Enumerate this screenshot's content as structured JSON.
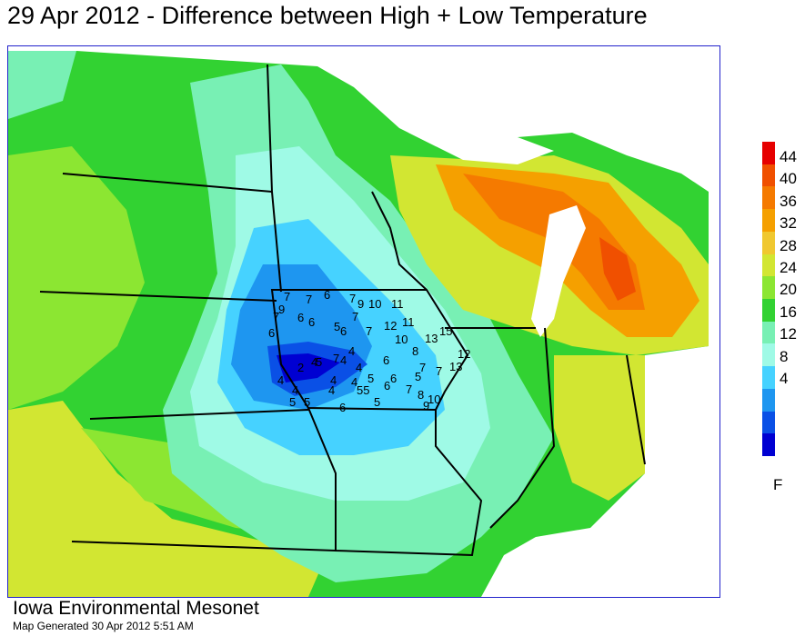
{
  "title": "29 Apr 2012 - Difference between High + Low Temperature",
  "legend": {
    "unit": "F",
    "levels": [
      "44",
      "40",
      "36",
      "32",
      "28",
      "24",
      "20",
      "16",
      "12",
      "8",
      "4"
    ],
    "colors": [
      "#e60000",
      "#f05000",
      "#f57a00",
      "#f5a000",
      "#f0c830",
      "#d2e632",
      "#8ce632",
      "#32d232",
      "#78f0b4",
      "#9ffae6",
      "#46d2ff",
      "#1e96f0",
      "#0a50e6",
      "#0000d2"
    ]
  },
  "observations": [
    {
      "v": "7"
    },
    {
      "v": "7"
    },
    {
      "v": "6"
    },
    {
      "v": "7"
    },
    {
      "v": "9"
    },
    {
      "v": "10"
    },
    {
      "v": "11"
    },
    {
      "v": "9"
    },
    {
      "v": "7"
    },
    {
      "v": "6"
    },
    {
      "v": "6"
    },
    {
      "v": "7"
    },
    {
      "v": "5"
    },
    {
      "v": "6"
    },
    {
      "v": "7"
    },
    {
      "v": "12"
    },
    {
      "v": "11"
    },
    {
      "v": "10"
    },
    {
      "v": "13"
    },
    {
      "v": "15"
    },
    {
      "v": "6"
    },
    {
      "v": "7"
    },
    {
      "v": "5"
    },
    {
      "v": "4"
    },
    {
      "v": "4"
    },
    {
      "v": "8"
    },
    {
      "v": "12"
    },
    {
      "v": "4"
    },
    {
      "v": "2"
    },
    {
      "v": "4"
    },
    {
      "v": "4"
    },
    {
      "v": "4"
    },
    {
      "v": "6"
    },
    {
      "v": "7"
    },
    {
      "v": "13"
    },
    {
      "v": "4"
    },
    {
      "v": "5"
    },
    {
      "v": "6"
    },
    {
      "v": "5"
    },
    {
      "v": "7"
    },
    {
      "v": "4"
    },
    {
      "v": "4"
    },
    {
      "v": "55"
    },
    {
      "v": "6"
    },
    {
      "v": "7"
    },
    {
      "v": "8"
    },
    {
      "v": "5"
    },
    {
      "v": "5"
    },
    {
      "v": "6"
    },
    {
      "v": "5"
    },
    {
      "v": "10"
    },
    {
      "v": "9"
    }
  ],
  "footer": {
    "org": "Iowa Environmental Mesonet",
    "generated": "Map Generated 30 Apr 2012 5:51 AM"
  }
}
